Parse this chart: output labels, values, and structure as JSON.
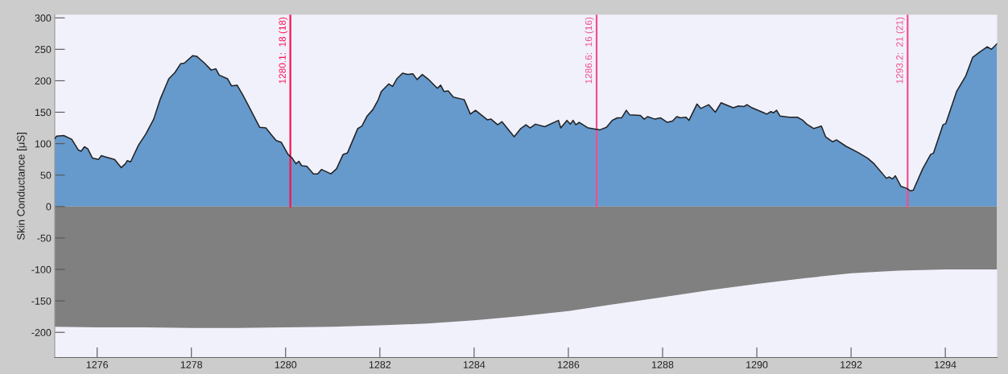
{
  "chart_data": {
    "type": "area",
    "ylabel": "Skin Conductance [μS]",
    "xlim": [
      1275.1,
      1295.1
    ],
    "xticks": [
      1276,
      1278,
      1280,
      1282,
      1284,
      1286,
      1288,
      1290,
      1292,
      1294
    ],
    "ylim": [
      -240,
      305
    ],
    "yticks": [
      -200,
      -150,
      -100,
      -50,
      0,
      50,
      100,
      150,
      200,
      250,
      300
    ],
    "grid": false,
    "series": [
      {
        "color": "#6699cc",
        "x": [
          1275.1,
          1275.14,
          1275.29,
          1275.46,
          1275.6,
          1275.66,
          1275.73,
          1275.8,
          1275.9,
          1276.03,
          1276.09,
          1276.17,
          1276.37,
          1276.51,
          1276.6,
          1276.64,
          1276.71,
          1276.88,
          1277.03,
          1277.2,
          1277.34,
          1277.52,
          1277.65,
          1277.77,
          1277.85,
          1278.03,
          1278.11,
          1278.28,
          1278.42,
          1278.52,
          1278.59,
          1278.77,
          1278.85,
          1278.97,
          1279.08,
          1279.2,
          1279.45,
          1279.58,
          1279.71,
          1279.8,
          1279.91,
          1280.05,
          1280.14,
          1280.22,
          1280.28,
          1280.34,
          1280.45,
          1280.59,
          1280.68,
          1280.76,
          1280.96,
          1281.08,
          1281.22,
          1281.31,
          1281.53,
          1281.62,
          1281.73,
          1281.85,
          1281.96,
          1282.03,
          1282.19,
          1282.27,
          1282.36,
          1282.48,
          1282.59,
          1282.7,
          1282.79,
          1282.9,
          1283.02,
          1283.22,
          1283.29,
          1283.36,
          1283.45,
          1283.56,
          1283.79,
          1283.92,
          1284.03,
          1284.28,
          1284.36,
          1284.5,
          1284.59,
          1284.85,
          1284.99,
          1285.1,
          1285.19,
          1285.3,
          1285.5,
          1285.79,
          1285.84,
          1285.97,
          1286.04,
          1286.1,
          1286.16,
          1286.23,
          1286.42,
          1286.67,
          1286.81,
          1286.93,
          1287.04,
          1287.13,
          1287.23,
          1287.3,
          1287.53,
          1287.61,
          1287.68,
          1287.84,
          1287.96,
          1288.1,
          1288.21,
          1288.3,
          1288.38,
          1288.5,
          1288.56,
          1288.73,
          1288.81,
          1288.98,
          1289.12,
          1289.24,
          1289.5,
          1289.61,
          1289.73,
          1289.79,
          1289.9,
          1290.15,
          1290.21,
          1290.3,
          1290.35,
          1290.42,
          1290.49,
          1290.69,
          1290.86,
          1290.98,
          1291.06,
          1291.21,
          1291.37,
          1291.46,
          1291.61,
          1291.69,
          1291.89,
          1292.15,
          1292.35,
          1292.49,
          1292.75,
          1292.81,
          1292.88,
          1292.94,
          1293.06,
          1293.18,
          1293.26,
          1293.32,
          1293.52,
          1293.69,
          1293.75,
          1293.95,
          1294.01,
          1294.24,
          1294.43,
          1294.58,
          1294.72,
          1294.89,
          1294.98,
          1295.1
        ],
        "values": [
          108,
          112,
          113,
          107,
          90,
          88,
          95,
          92,
          77,
          75,
          81,
          79,
          75,
          62,
          68,
          73,
          71,
          98,
          115,
          139,
          171,
          203,
          213,
          227,
          228,
          240,
          239,
          228,
          217,
          219,
          209,
          203,
          192,
          193,
          179,
          162,
          126,
          125,
          113,
          105,
          102,
          83,
          77,
          68,
          72,
          65,
          64,
          52,
          52,
          59,
          52,
          60,
          83,
          85,
          124,
          128,
          144,
          154,
          169,
          183,
          195,
          191,
          203,
          212,
          210,
          211,
          202,
          210,
          203,
          188,
          193,
          183,
          184,
          174,
          170,
          147,
          153,
          138,
          139,
          130,
          135,
          111,
          124,
          130,
          125,
          131,
          127,
          137,
          125,
          137,
          131,
          137,
          130,
          134,
          125,
          122,
          126,
          137,
          141,
          141,
          153,
          146,
          145,
          139,
          143,
          139,
          141,
          134,
          136,
          143,
          141,
          142,
          137,
          163,
          156,
          162,
          150,
          165,
          157,
          160,
          159,
          162,
          157,
          149,
          147,
          151,
          149,
          153,
          144,
          142,
          142,
          137,
          131,
          124,
          128,
          111,
          103,
          106,
          96,
          86,
          77,
          68,
          45,
          47,
          44,
          49,
          32,
          29,
          25,
          26,
          60,
          83,
          85,
          130,
          132,
          183,
          207,
          237,
          245,
          254,
          250,
          259
        ]
      },
      {
        "color": "#808080",
        "x": [
          1275.1,
          1276,
          1277,
          1278,
          1279,
          1280,
          1281,
          1282,
          1283,
          1284,
          1285,
          1286,
          1287,
          1288,
          1289,
          1290,
          1291,
          1292,
          1293,
          1294,
          1295.1
        ],
        "values": [
          -191,
          -192,
          -192,
          -193,
          -193,
          -192,
          -191,
          -189,
          -186,
          -181,
          -174,
          -166,
          -155,
          -144,
          -133,
          -123,
          -114,
          -106,
          -102,
          -100,
          -100
        ]
      }
    ],
    "ref_lines": [
      {
        "axis": "x",
        "value": 1280.1,
        "label": "1280.1:  18 (18)",
        "color": "#ff1050"
      },
      {
        "axis": "x",
        "value": 1286.6,
        "label": "1286.6:  16 (16)",
        "color": "#f0508a"
      },
      {
        "axis": "x",
        "value": 1293.2,
        "label": "1293.2:  21 (21)",
        "color": "#f0508a"
      }
    ]
  }
}
